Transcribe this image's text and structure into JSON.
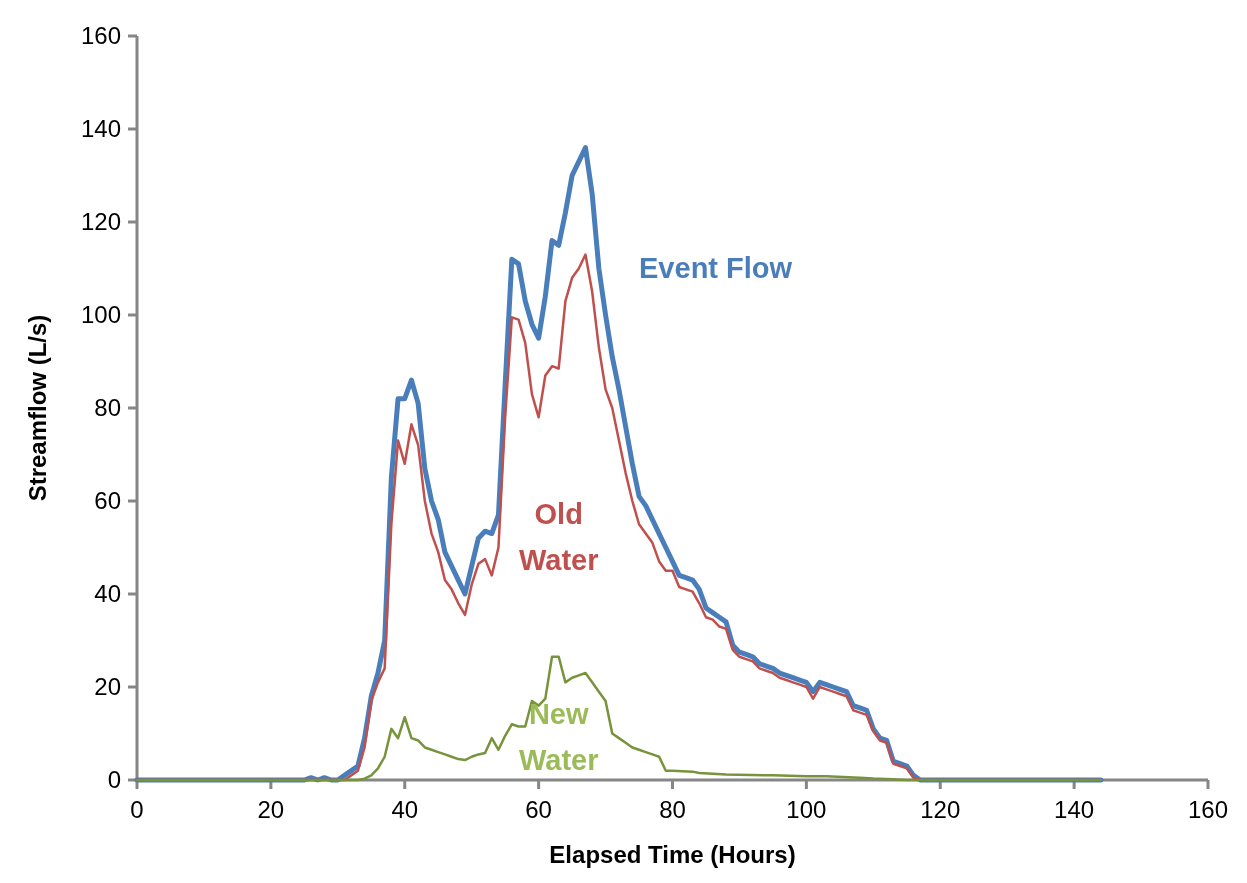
{
  "chart_data": {
    "type": "line",
    "xlabel": "Elapsed Time (Hours)",
    "ylabel": "Streamflow (L/s)",
    "xlim": [
      0,
      160
    ],
    "ylim": [
      0,
      160
    ],
    "xticks": [
      0,
      20,
      40,
      60,
      80,
      100,
      120,
      140,
      160
    ],
    "yticks": [
      0,
      20,
      40,
      60,
      80,
      100,
      120,
      140,
      160
    ],
    "grid": false,
    "marker": "none",
    "series": [
      {
        "name": "Event Flow",
        "color": "#4a7ebb",
        "x": [
          0,
          25,
          26,
          27,
          28,
          29,
          30,
          31,
          33,
          34,
          35,
          36,
          37,
          38,
          39,
          40,
          41,
          42,
          43,
          44,
          45,
          46,
          47,
          48,
          49,
          50,
          51,
          52,
          53,
          54,
          55,
          56,
          57,
          58,
          59,
          60,
          61,
          62,
          63,
          64,
          65,
          66,
          67,
          68,
          69,
          70,
          71,
          72,
          73,
          74,
          75,
          76,
          77,
          78,
          79,
          80,
          81,
          82,
          83,
          84,
          85,
          86,
          87,
          88,
          89,
          90,
          91,
          92,
          93,
          94,
          95,
          96,
          97,
          98,
          99,
          100,
          101,
          102,
          103,
          104,
          105,
          106,
          107,
          108,
          109,
          110,
          111,
          112,
          113,
          114,
          115,
          116,
          117,
          144
        ],
        "values": [
          0,
          0,
          0.5,
          0,
          0.5,
          0,
          0,
          1,
          3,
          9,
          18,
          23,
          30,
          65,
          82,
          82,
          86,
          81,
          67,
          60,
          56,
          49,
          46,
          43,
          40,
          46,
          52,
          53.5,
          53,
          57,
          85,
          112,
          111,
          103,
          98,
          95,
          104,
          116,
          115,
          122,
          130,
          133,
          136,
          126,
          110,
          100,
          91,
          84,
          76,
          68,
          61,
          59,
          56,
          53,
          50,
          47,
          44,
          43.5,
          43,
          41,
          37,
          36,
          35,
          34,
          29,
          27.5,
          27,
          26.5,
          25,
          24.5,
          24,
          23,
          22.5,
          22,
          21.5,
          21,
          19,
          21,
          20.5,
          20,
          19.5,
          19,
          16,
          15.5,
          15,
          11,
          9,
          8.5,
          4,
          3.5,
          3,
          1,
          0,
          0
        ]
      },
      {
        "name": "Old Water",
        "color": "#c0504d",
        "x": [
          0,
          31,
          32,
          33,
          34,
          35,
          36,
          37,
          38,
          39,
          40,
          41,
          42,
          43,
          44,
          45,
          46,
          47,
          48,
          49,
          50,
          51,
          52,
          53,
          54,
          55,
          56,
          57,
          58,
          59,
          60,
          61,
          62,
          63,
          64,
          65,
          66,
          67,
          68,
          69,
          70,
          71,
          72,
          73,
          74,
          75,
          76,
          77,
          78,
          79,
          80,
          81,
          82,
          83,
          84,
          85,
          86,
          87,
          88,
          89,
          90,
          91,
          92,
          93,
          94,
          95,
          96,
          97,
          98,
          99,
          100,
          101,
          102,
          103,
          104,
          105,
          106,
          107,
          108,
          109,
          110,
          111,
          112,
          113,
          114,
          115,
          116,
          117,
          144
        ],
        "values": [
          0,
          0,
          1,
          2,
          7,
          17,
          21,
          24,
          55,
          73,
          68,
          76.5,
          72,
          60,
          53,
          49,
          43,
          41,
          38,
          35.5,
          42,
          46.5,
          47.5,
          44,
          50,
          78,
          99.5,
          99,
          94,
          83,
          78,
          87,
          89,
          88.5,
          103,
          108,
          110,
          113,
          105,
          93,
          84,
          80,
          73,
          66,
          60,
          55,
          53,
          51,
          47,
          45,
          45,
          41.5,
          41,
          40.5,
          38,
          35,
          34.5,
          33,
          32.5,
          28,
          26.5,
          26,
          25.5,
          24,
          23.5,
          23,
          22,
          21.5,
          21,
          20.5,
          20,
          17.5,
          20,
          19.5,
          19,
          18.5,
          18,
          15,
          14.5,
          14,
          10.5,
          8.5,
          8,
          3.5,
          3,
          2.5,
          0.5,
          0,
          0
        ]
      },
      {
        "name": "New Water",
        "color": "#77933c",
        "x": [
          0,
          33,
          34,
          35,
          36,
          37,
          38,
          39,
          40,
          41,
          42,
          43,
          44,
          45,
          46,
          47,
          48,
          49,
          50,
          51,
          52,
          53,
          54,
          55,
          56,
          57,
          58,
          59,
          60,
          61,
          62,
          63,
          64,
          65,
          66,
          67,
          68,
          69,
          70,
          71,
          72,
          73,
          74,
          75,
          76,
          77,
          78,
          79,
          80,
          83,
          84,
          88,
          95,
          100,
          103,
          108,
          110,
          112,
          115,
          144
        ],
        "values": [
          0,
          0,
          0.3,
          1,
          2.5,
          5,
          11,
          9,
          13.5,
          9,
          8.5,
          7,
          6.5,
          6,
          5.5,
          5,
          4.5,
          4.3,
          5,
          5.5,
          5.8,
          9,
          6.5,
          9.5,
          12,
          11.5,
          11.5,
          17,
          16,
          17.5,
          26.5,
          26.5,
          21,
          22,
          22.5,
          23,
          21,
          19,
          17,
          10,
          9,
          8,
          7,
          6.5,
          6,
          5.5,
          5,
          2,
          2,
          1.8,
          1.5,
          1.2,
          1,
          0.8,
          0.8,
          0.5,
          0.3,
          0.2,
          0,
          0
        ]
      }
    ]
  }
}
